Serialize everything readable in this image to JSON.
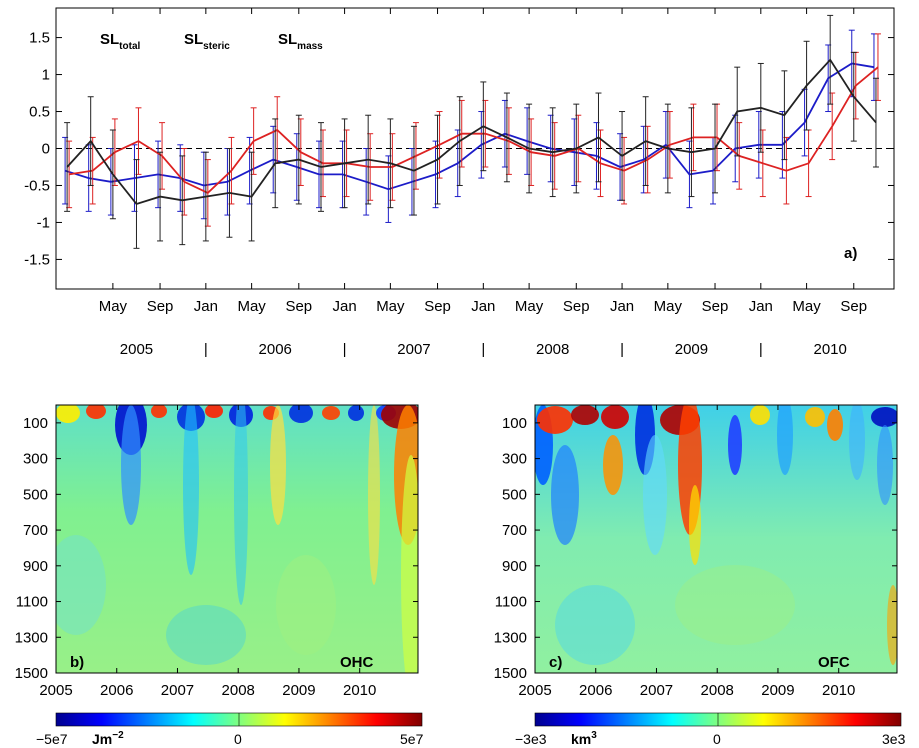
{
  "chart_data": [
    {
      "type": "line",
      "panel_label": "a)",
      "ylim": [
        -1.9,
        1.9
      ],
      "y_ticks": [
        "-1.5",
        "-1",
        "-0.5",
        "0",
        "0.5",
        "1",
        "1.5"
      ],
      "y_tick_values": [
        -1.5,
        -1,
        -0.5,
        0,
        0.5,
        1,
        1.5
      ],
      "x_month_ticks": [
        "May",
        "Sep",
        "Jan",
        "May",
        "Sep",
        "Jan",
        "May",
        "Sep",
        "Jan",
        "May",
        "Sep",
        "Jan",
        "May",
        "Sep",
        "Jan",
        "May",
        "Sep"
      ],
      "x_month_tick_values": [
        2005.33,
        2005.67,
        2006.0,
        2006.33,
        2006.67,
        2007.0,
        2007.33,
        2007.67,
        2008.0,
        2008.33,
        2008.67,
        2009.0,
        2009.33,
        2009.67,
        2010.0,
        2010.33,
        2010.67
      ],
      "x_year_labels": [
        "2005",
        "2006",
        "2007",
        "2008",
        "2009",
        "2010"
      ],
      "x_year_label_values": [
        2005.5,
        2006.5,
        2007.5,
        2008.5,
        2009.5,
        2010.5
      ],
      "x_year_separator": "|",
      "x_year_separator_values": [
        2006.0,
        2007.0,
        2008.0,
        2009.0,
        2010.0
      ],
      "xlim": [
        2004.92,
        2010.96
      ],
      "x": [
        2005.0,
        2005.17,
        2005.33,
        2005.5,
        2005.67,
        2005.83,
        2006.0,
        2006.17,
        2006.33,
        2006.5,
        2006.67,
        2006.83,
        2007.0,
        2007.17,
        2007.33,
        2007.5,
        2007.67,
        2007.83,
        2008.0,
        2008.17,
        2008.33,
        2008.5,
        2008.67,
        2008.83,
        2009.0,
        2009.17,
        2009.33,
        2009.5,
        2009.67,
        2009.83,
        2010.0,
        2010.17,
        2010.33,
        2010.5,
        2010.67,
        2010.83
      ],
      "series": [
        {
          "name": "SL",
          "subscript": "total",
          "color": "#1c1cc8",
          "values": [
            -0.3,
            -0.4,
            -0.45,
            -0.4,
            -0.35,
            -0.4,
            -0.5,
            -0.45,
            -0.3,
            -0.15,
            -0.25,
            -0.35,
            -0.35,
            -0.45,
            -0.55,
            -0.45,
            -0.35,
            -0.2,
            0.05,
            0.2,
            0.1,
            0.0,
            -0.05,
            -0.1,
            -0.25,
            -0.15,
            0.05,
            -0.35,
            -0.3,
            0.0,
            0.05,
            0.05,
            0.35,
            0.95,
            1.15,
            1.1
          ],
          "error": [
            0.45,
            0.45,
            0.45,
            0.45,
            0.45,
            0.45,
            0.45,
            0.45,
            0.45,
            0.45,
            0.45,
            0.45,
            0.45,
            0.45,
            0.45,
            0.45,
            0.45,
            0.45,
            0.45,
            0.45,
            0.45,
            0.45,
            0.45,
            0.45,
            0.45,
            0.45,
            0.45,
            0.45,
            0.45,
            0.45,
            0.45,
            0.45,
            0.45,
            0.45,
            0.45,
            0.45
          ]
        },
        {
          "name": "SL",
          "subscript": "steric",
          "color": "#dd2222",
          "values": [
            -0.35,
            -0.3,
            -0.05,
            0.1,
            -0.1,
            -0.45,
            -0.6,
            -0.3,
            0.1,
            0.25,
            -0.05,
            -0.2,
            -0.2,
            -0.25,
            -0.25,
            -0.1,
            0.05,
            0.2,
            0.2,
            0.1,
            -0.05,
            -0.1,
            0.0,
            -0.2,
            -0.3,
            -0.15,
            0.05,
            0.15,
            0.15,
            -0.1,
            -0.2,
            -0.3,
            -0.2,
            0.3,
            0.85,
            1.1
          ],
          "error": [
            0.45,
            0.45,
            0.45,
            0.45,
            0.45,
            0.45,
            0.45,
            0.45,
            0.45,
            0.45,
            0.45,
            0.45,
            0.45,
            0.45,
            0.45,
            0.45,
            0.45,
            0.45,
            0.45,
            0.45,
            0.45,
            0.45,
            0.45,
            0.45,
            0.45,
            0.45,
            0.45,
            0.45,
            0.45,
            0.45,
            0.45,
            0.45,
            0.45,
            0.45,
            0.45,
            0.45
          ]
        },
        {
          "name": "SL",
          "subscript": "mass",
          "color": "#222222",
          "values": [
            -0.25,
            0.1,
            -0.35,
            -0.75,
            -0.65,
            -0.7,
            -0.65,
            -0.6,
            -0.65,
            -0.2,
            -0.15,
            -0.25,
            -0.2,
            -0.15,
            -0.2,
            -0.3,
            -0.15,
            0.1,
            0.3,
            0.15,
            0.0,
            -0.05,
            0.0,
            0.15,
            -0.1,
            0.1,
            0.0,
            -0.05,
            0.0,
            0.5,
            0.55,
            0.45,
            0.85,
            1.2,
            0.7,
            0.35
          ],
          "error": [
            0.6,
            0.6,
            0.6,
            0.6,
            0.6,
            0.6,
            0.6,
            0.6,
            0.6,
            0.6,
            0.6,
            0.6,
            0.6,
            0.6,
            0.6,
            0.6,
            0.6,
            0.6,
            0.6,
            0.6,
            0.6,
            0.6,
            0.6,
            0.6,
            0.6,
            0.6,
            0.6,
            0.6,
            0.6,
            0.6,
            0.6,
            0.6,
            0.6,
            0.6,
            0.6,
            0.6
          ]
        }
      ]
    },
    {
      "type": "heatmap",
      "panel_label": "b)",
      "panel_title": "OHC",
      "x_ticks": [
        "2005",
        "2006",
        "2007",
        "2008",
        "2009",
        "2010"
      ],
      "y_ticks": [
        "100",
        "300",
        "500",
        "700",
        "900",
        "1100",
        "1300",
        "1500"
      ],
      "ylim": [
        0,
        1500
      ],
      "y_inverted": true,
      "xlim": [
        2005.0,
        2010.96
      ],
      "colorbar": {
        "min_label": "−5e7",
        "max_label": "5e7",
        "center_label": "0",
        "unit_main": "Jm",
        "unit_sup": "−2"
      },
      "description_stripes_surface_sign": [
        1,
        1,
        -1,
        1,
        -1,
        1,
        -1,
        1,
        -1,
        1,
        -1,
        1,
        -1,
        1,
        -1,
        1,
        -1,
        1,
        1,
        1
      ]
    },
    {
      "type": "heatmap",
      "panel_label": "c)",
      "panel_title": "OFC",
      "x_ticks": [
        "2005",
        "2006",
        "2007",
        "2008",
        "2009",
        "2010"
      ],
      "y_ticks": [
        "100",
        "300",
        "500",
        "700",
        "900",
        "1100",
        "1300",
        "1500"
      ],
      "ylim": [
        0,
        1500
      ],
      "y_inverted": true,
      "xlim": [
        2005.0,
        2010.96
      ],
      "colorbar": {
        "min_label": "−3e3",
        "max_label": "3e3",
        "center_label": "0",
        "unit_main": "km",
        "unit_sup": "3"
      }
    }
  ]
}
